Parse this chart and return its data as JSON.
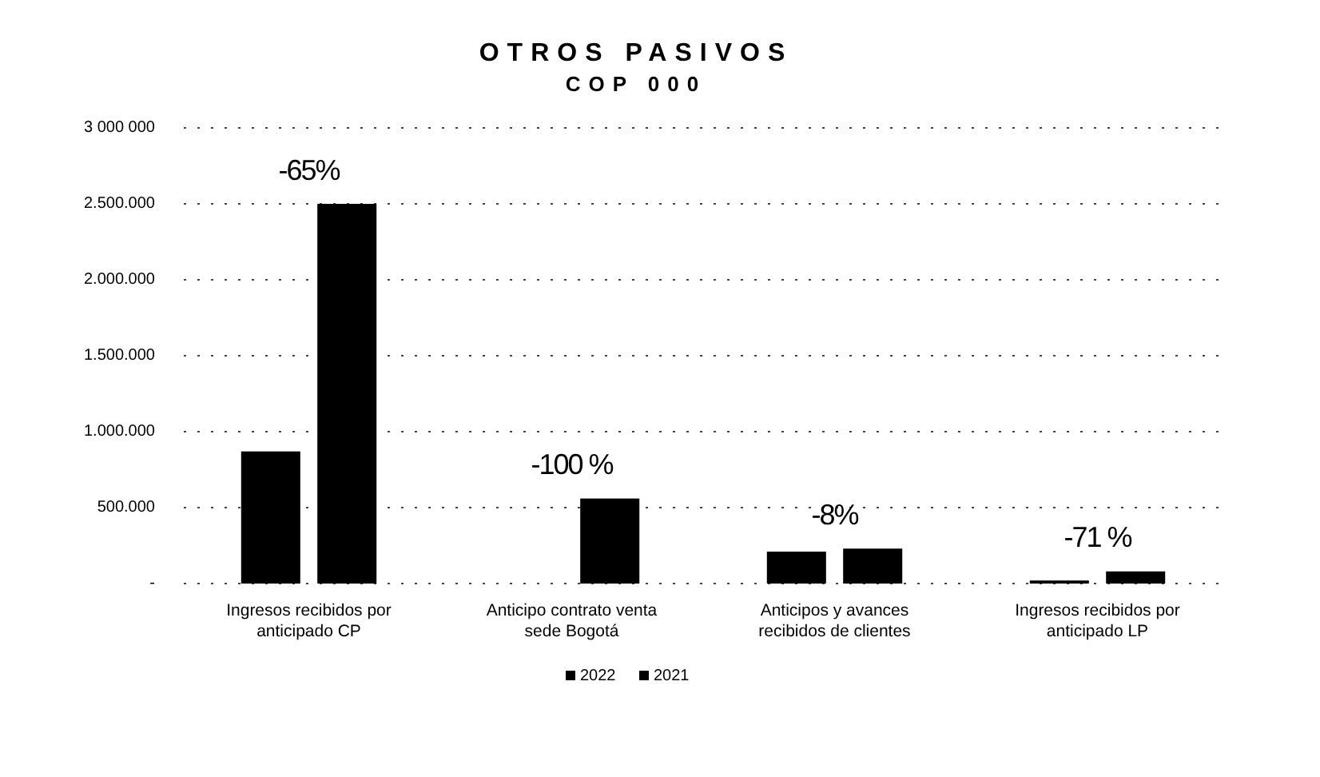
{
  "chart_data": {
    "type": "bar",
    "title": "OTROS PASIVOS",
    "subtitle": "COP 000",
    "categories": [
      "Ingresos recibidos por anticipado CP",
      "Anticipo contrato venta sede Bogotá",
      "Anticipos y avances recibidos de clientes",
      "Ingresos recibidos por anticipado LP"
    ],
    "series": [
      {
        "name": "2022",
        "color": "#000000",
        "values": [
          870000,
          0,
          210000,
          20000
        ]
      },
      {
        "name": "2021",
        "color": "#000000",
        "values": [
          2500000,
          560000,
          230000,
          80000
        ]
      }
    ],
    "ylim": [
      0,
      3000000
    ],
    "yticks": [
      {
        "value": 0,
        "label": "-"
      },
      {
        "value": 500000,
        "label": "500.000"
      },
      {
        "value": 1000000,
        "label": "1.000.000"
      },
      {
        "value": 1500000,
        "label": "1.500.000"
      },
      {
        "value": 2000000,
        "label": "2.000.000"
      },
      {
        "value": 2500000,
        "label": "2.500.000"
      },
      {
        "value": 3000000,
        "label": "3 000 000"
      }
    ],
    "grid": "y",
    "legend": "bottom",
    "annotations": [
      "-65%",
      "-100 %",
      "-8%",
      "-71 %"
    ]
  }
}
